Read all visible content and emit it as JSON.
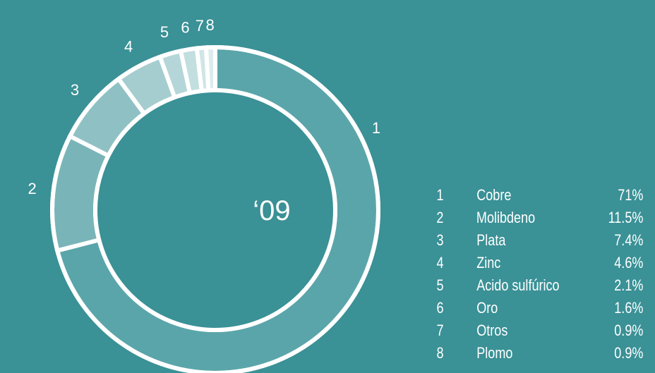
{
  "chart_data": {
    "type": "pie",
    "center_label": "‘09",
    "slices": [
      {
        "id": "1",
        "label": "Cobre",
        "value": 71,
        "display": "71%",
        "color": "#5aa5aa"
      },
      {
        "id": "2",
        "label": "Molibdeno",
        "value": 11.5,
        "display": "11.5%",
        "color": "#79b4b8"
      },
      {
        "id": "3",
        "label": "Plata",
        "value": 7.4,
        "display": "7.4%",
        "color": "#8fc1c4"
      },
      {
        "id": "4",
        "label": "Zinc",
        "value": 4.6,
        "display": "4.6%",
        "color": "#a5cdcf"
      },
      {
        "id": "5",
        "label": "Acido sulfúrico",
        "value": 2.1,
        "display": "2.1%",
        "color": "#b4d6d8"
      },
      {
        "id": "6",
        "label": "Oro",
        "value": 1.6,
        "display": "1.6%",
        "color": "#c2dedf"
      },
      {
        "id": "7",
        "label": "Otros",
        "value": 0.9,
        "display": "0.9%",
        "color": "#cfe5e6"
      },
      {
        "id": "8",
        "label": "Plomo",
        "value": 0.9,
        "display": "0.9%",
        "color": "#dcecec"
      }
    ]
  }
}
